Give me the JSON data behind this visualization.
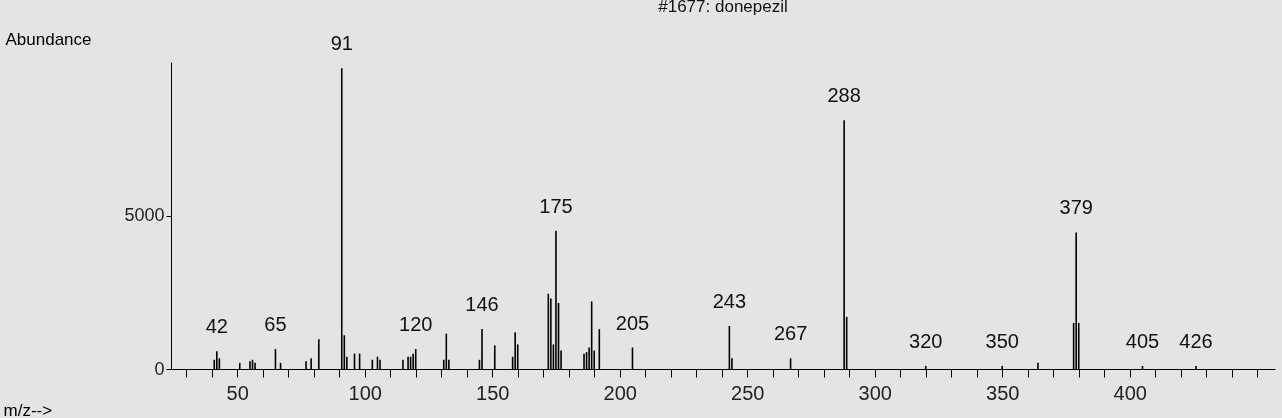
{
  "chart_data": {
    "type": "bar",
    "title": "#1677: donepezil",
    "xlabel": "m/z-->",
    "ylabel": "Abundance",
    "x": [
      41,
      42,
      43,
      51,
      55,
      56,
      57,
      65,
      67,
      77,
      79,
      82,
      91,
      92,
      93,
      96,
      98,
      103,
      105,
      106,
      115,
      117,
      118,
      119,
      120,
      131,
      132,
      133,
      145,
      146,
      151,
      158,
      159,
      160,
      172,
      173,
      174,
      175,
      176,
      177,
      186,
      187,
      188,
      189,
      190,
      192,
      205,
      243,
      244,
      267,
      288,
      289,
      320,
      350,
      364,
      378,
      379,
      380,
      405,
      426
    ],
    "values": [
      300,
      580,
      350,
      200,
      250,
      300,
      200,
      650,
      200,
      250,
      350,
      970,
      9800,
      1100,
      400,
      500,
      500,
      300,
      400,
      300,
      300,
      400,
      400,
      500,
      650,
      300,
      1150,
      300,
      300,
      1300,
      770,
      400,
      1200,
      800,
      2450,
      2300,
      800,
      4500,
      2150,
      600,
      500,
      550,
      700,
      2200,
      600,
      1300,
      700,
      1400,
      350,
      350,
      8100,
      1700,
      100,
      100,
      200,
      1500,
      4450,
      1500,
      100,
      100
    ],
    "color": "#000000",
    "xlim": [
      26,
      455
    ],
    "xticks": [
      {
        "value": 30,
        "label": null
      },
      {
        "value": 40,
        "label": null
      },
      50,
      {
        "value": 60,
        "label": null
      },
      {
        "value": 70,
        "label": null
      },
      {
        "value": 80,
        "label": null
      },
      {
        "value": 90,
        "label": null
      },
      100,
      {
        "value": 110,
        "label": null
      },
      {
        "value": 120,
        "label": null
      },
      {
        "value": 130,
        "label": null
      },
      {
        "value": 140,
        "label": null
      },
      150,
      {
        "value": 160,
        "label": null
      },
      {
        "value": 170,
        "label": null
      },
      {
        "value": 180,
        "label": null
      },
      {
        "value": 190,
        "label": null
      },
      200,
      {
        "value": 210,
        "label": null
      },
      {
        "value": 220,
        "label": null
      },
      {
        "value": 230,
        "label": null
      },
      {
        "value": 240,
        "label": null
      },
      250,
      {
        "value": 260,
        "label": null
      },
      {
        "value": 270,
        "label": null
      },
      {
        "value": 280,
        "label": null
      },
      {
        "value": 290,
        "label": null
      },
      300,
      {
        "value": 310,
        "label": null
      },
      {
        "value": 320,
        "label": null
      },
      {
        "value": 330,
        "label": null
      },
      {
        "value": 340,
        "label": null
      },
      350,
      {
        "value": 360,
        "label": null
      },
      {
        "value": 370,
        "label": null
      },
      {
        "value": 380,
        "label": null
      },
      {
        "value": 390,
        "label": null
      },
      400,
      {
        "value": 410,
        "label": null
      },
      {
        "value": 420,
        "label": null
      },
      {
        "value": 430,
        "label": null
      },
      {
        "value": 440,
        "label": null
      },
      {
        "value": 450,
        "label": null
      }
    ],
    "ylim": [
      0,
      10000
    ],
    "yticks": [
      0,
      5000
    ],
    "grid": false,
    "annotations": [
      {
        "text": "42",
        "x": 42,
        "y": 580
      },
      {
        "text": "65",
        "x": 65,
        "y": 650
      },
      {
        "text": "91",
        "x": 91,
        "y": 9800
      },
      {
        "text": "120",
        "x": 120,
        "y": 650
      },
      {
        "text": "146",
        "x": 146,
        "y": 1300
      },
      {
        "text": "175",
        "x": 175,
        "y": 4500
      },
      {
        "text": "205",
        "x": 205,
        "y": 700
      },
      {
        "text": "243",
        "x": 243,
        "y": 1400
      },
      {
        "text": "267",
        "x": 267,
        "y": 350
      },
      {
        "text": "288",
        "x": 288,
        "y": 8100
      },
      {
        "text": "320",
        "x": 320,
        "y": 100
      },
      {
        "text": "350",
        "x": 350,
        "y": 100
      },
      {
        "text": "379",
        "x": 379,
        "y": 4450
      },
      {
        "text": "405",
        "x": 405,
        "y": 100
      },
      {
        "text": "426",
        "x": 426,
        "y": 100
      }
    ]
  }
}
